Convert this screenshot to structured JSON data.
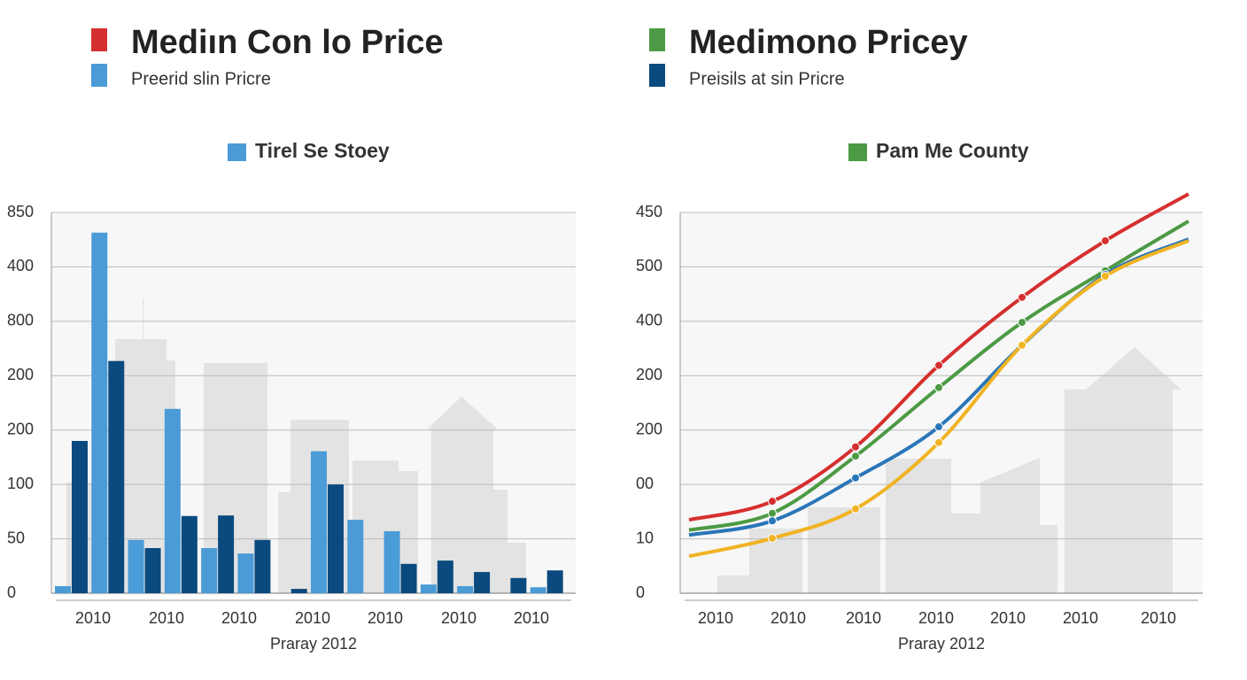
{
  "chart_data": [
    {
      "type": "bar",
      "legend": [
        {
          "name": "Mediın Con lo Price",
          "color": "#d62f2f"
        },
        {
          "name": "Preerid slin Pricre",
          "color": "#4a9bd6"
        }
      ],
      "title": "Tirel Se Stoey",
      "title_color": "#4a9bd6",
      "xlabel": "Praray 2012",
      "xtick_labels": [
        "2010",
        "2010",
        "2010",
        "2010",
        "2010",
        "2010",
        "2010"
      ],
      "ytick_labels": [
        "0",
        "50",
        "100",
        "200",
        "200",
        "800",
        "400",
        "850"
      ],
      "yticks": [
        0,
        1,
        2,
        3,
        4,
        5,
        6,
        7
      ],
      "ylim": [
        0,
        7
      ],
      "grid": true,
      "categories": [
        null,
        null,
        null,
        null,
        null,
        null,
        null,
        null,
        null,
        null,
        null,
        null,
        null,
        null
      ],
      "series": [
        {
          "color": "#4a9bd6",
          "values": [
            0.13,
            6.63,
            0.98,
            3.39,
            0.83,
            0.73,
            null,
            2.61,
            1.35,
            1.14,
            0.16,
            0.13,
            null,
            0.11
          ]
        },
        {
          "color": "#0b4a7e",
          "values": [
            2.8,
            4.27,
            0.83,
            1.42,
            1.43,
            0.98,
            0.08,
            2.0,
            null,
            0.54,
            0.6,
            0.39,
            0.28,
            0.42
          ]
        }
      ]
    },
    {
      "type": "line",
      "legend": [
        {
          "name": "Medimono Pricey",
          "color": "#4c9a44"
        },
        {
          "name": "Preisils at sin Pricre",
          "color": "#0b4a7e"
        }
      ],
      "title": "Pam Me County",
      "title_color": "#4c9a44",
      "xlabel": "Praray 2012",
      "xtick_labels": [
        "2010",
        "2010",
        "2010",
        "2010",
        "2010",
        "2010",
        "2010"
      ],
      "ytick_labels": [
        "0",
        "10",
        "00",
        "200",
        "200",
        "400",
        "500",
        "450"
      ],
      "yticks": [
        0,
        1,
        2,
        3,
        4,
        5,
        6,
        7
      ],
      "ylim": [
        0,
        7
      ],
      "grid": true,
      "categories": [
        null,
        null,
        null,
        null,
        null,
        null,
        null
      ],
      "series": [
        {
          "color": "#d62f2f",
          "values": [
            1.35,
            1.69,
            2.69,
            4.19,
            5.44,
            6.48,
            7.34
          ]
        },
        {
          "color": "#4c9a44",
          "values": [
            1.16,
            1.47,
            2.52,
            3.78,
            4.98,
            5.93,
            6.84
          ]
        },
        {
          "color": "#2a76b8",
          "values": [
            1.07,
            1.33,
            2.12,
            3.06,
            4.56,
            5.86,
            6.51
          ]
        },
        {
          "color": "#f0b323",
          "values": [
            0.68,
            1.01,
            1.55,
            2.77,
            4.56,
            5.83,
            6.48
          ]
        }
      ]
    }
  ]
}
